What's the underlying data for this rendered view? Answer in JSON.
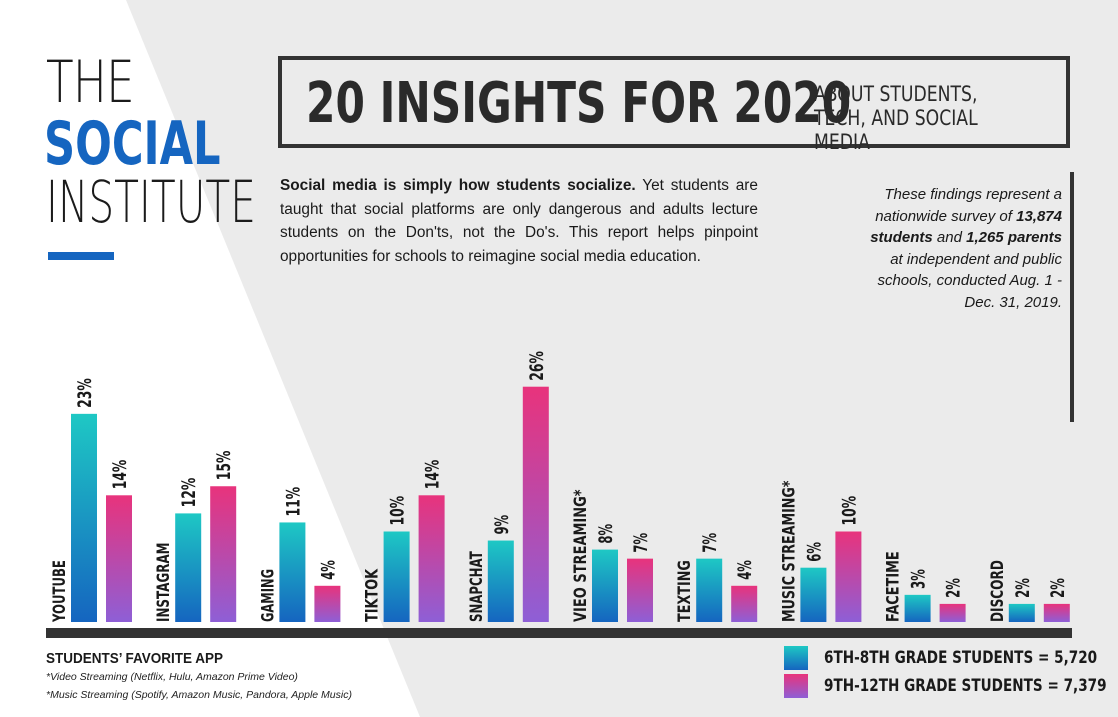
{
  "logo": {
    "the": "THE",
    "social": "SOCIAL",
    "institute": "INSTITUTE"
  },
  "title": {
    "main": "20 INSIGHTS FOR 2020",
    "sub": "ABOUT STUDENTS, TECH, AND SOCIAL MEDIA"
  },
  "intro": {
    "bold": "Social media is simply how students socialize.",
    "rest": " Yet students are taught that social platforms are only dangerous and adults lecture students on the Don'ts, not the Do's. This report helps pinpoint opportunities for schools to reimagine social media education."
  },
  "survey": {
    "p1": "These findings represent a nationwide survey of ",
    "b1": "13,874 students",
    "p2": " and ",
    "b2": "1,265 parents",
    "p3": " at independent and public schools, conducted Aug. 1 - Dec. 31, 2019."
  },
  "footer": {
    "title": "STUDENTS’ FAVORITE APP",
    "note1": "*Video Streaming (Netflix, Hulu, Amazon Prime Video)",
    "note2": "*Music Streaming (Spotify, Amazon Music, Pandora, Apple Music)"
  },
  "legend": [
    {
      "label": "6TH-8TH GRADE STUDENTS = 5,720",
      "color_top": "#1ec8c4",
      "color_bottom": "#1565c0"
    },
    {
      "label": "9TH-12TH GRADE STUDENTS = 7,379",
      "color_top": "#e8337c",
      "color_bottom": "#8e5fd6"
    }
  ],
  "chart_data": {
    "type": "bar",
    "categories": [
      "YOUTUBE",
      "INSTAGRAM",
      "GAMING",
      "TIKTOK",
      "SNAPCHAT",
      "VIEO STREAMING*",
      "TEXTING",
      "MUSIC STREAMING*",
      "FACETIME",
      "DISCORD"
    ],
    "series": [
      {
        "values": [
          23,
          12,
          11,
          10,
          9,
          8,
          7,
          6,
          3,
          2
        ],
        "labels": [
          "23%",
          "12%",
          "11%",
          "10%",
          "9%",
          "8%",
          "7%",
          "6%",
          "3%",
          "2%"
        ]
      },
      {
        "values": [
          14,
          15,
          4,
          14,
          26,
          7,
          4,
          10,
          2,
          2
        ],
        "labels": [
          "14%",
          "15%",
          "4%",
          "14%",
          "26%",
          "7%",
          "4%",
          "10%",
          "2%",
          "2%"
        ]
      }
    ],
    "unit": "%",
    "ylim": [
      0,
      26
    ]
  }
}
